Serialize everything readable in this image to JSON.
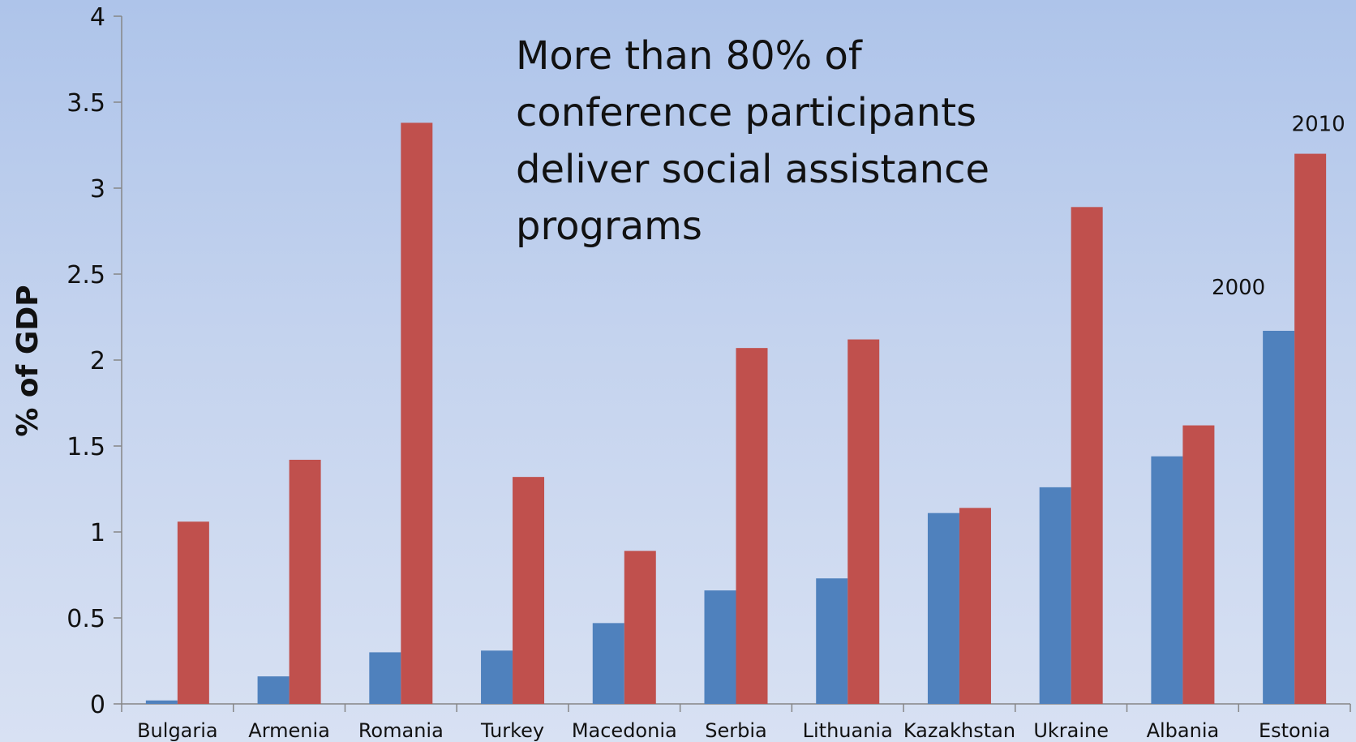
{
  "chart_data": {
    "type": "bar",
    "title": "",
    "ylabel": "% of GDP",
    "xlabel": "",
    "ylim": [
      0,
      4
    ],
    "yticks": [
      "0",
      "0.5",
      "1",
      "1.5",
      "2",
      "2.5",
      "3",
      "3.5",
      "4"
    ],
    "categories": [
      "Bulgaria",
      "Armenia",
      "Romania",
      "Turkey",
      "Macedonia",
      "Serbia",
      "Lithuania",
      "Kazakhstan",
      "Ukraine",
      "Albania",
      "Estonia"
    ],
    "series": [
      {
        "name": "2000",
        "color": "#4f81bd",
        "values": [
          0.02,
          0.16,
          0.3,
          0.31,
          0.47,
          0.66,
          0.73,
          1.11,
          1.26,
          1.44,
          2.17
        ]
      },
      {
        "name": "2010",
        "color": "#c0504d",
        "values": [
          1.06,
          1.42,
          3.38,
          1.32,
          0.89,
          2.07,
          2.12,
          1.14,
          2.89,
          1.62,
          3.2
        ]
      }
    ],
    "annotation": "More than 80% of conference participants deliver social assistance programs",
    "grid": false,
    "legend": "inline-labels-on-last-category"
  }
}
